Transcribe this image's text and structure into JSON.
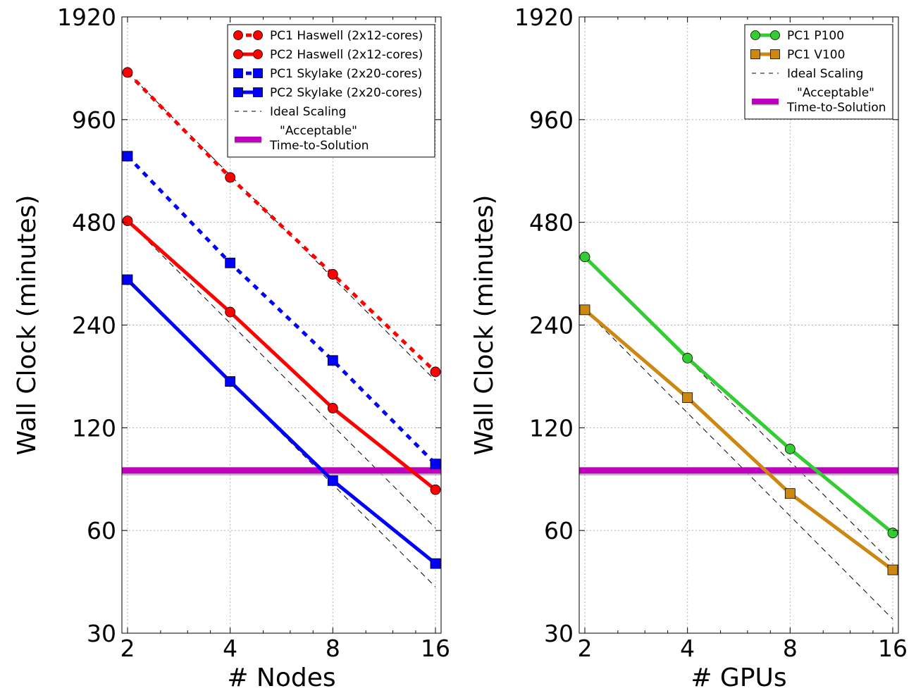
{
  "chart_data": [
    {
      "type": "line",
      "xscale": "log2",
      "yscale": "log2",
      "xlabel": "# Nodes",
      "ylabel": "Wall Clock (minutes)",
      "x_ticks": [
        "2",
        "4",
        "8",
        "16"
      ],
      "y_ticks": [
        "30",
        "60",
        "120",
        "240",
        "480",
        "960",
        "1920"
      ],
      "xlim": [
        2,
        16
      ],
      "ylim": [
        30,
        1920
      ],
      "grid": true,
      "legend_position": "top-right",
      "series": [
        {
          "name": "PC1 Haswell (2x12-cores)",
          "x": [
            2,
            4,
            8,
            16
          ],
          "y": [
            1320,
            650,
            338,
            175
          ],
          "color": "#ff0000",
          "marker": "circle",
          "linestyle": "dotted"
        },
        {
          "name": "PC2 Haswell (2x12-cores)",
          "x": [
            2,
            4,
            8,
            16
          ],
          "y": [
            485,
            262,
            137,
            79
          ],
          "color": "#ff0000",
          "marker": "circle",
          "linestyle": "solid"
        },
        {
          "name": "PC1 Skylake (2x20-cores)",
          "x": [
            2,
            4,
            8,
            16
          ],
          "y": [
            750,
            365,
            189,
            94
          ],
          "color": "#0000ff",
          "marker": "square",
          "linestyle": "dotted"
        },
        {
          "name": "PC2 Skylake (2x20-cores)",
          "x": [
            2,
            4,
            8,
            16
          ],
          "y": [
            326,
            164,
            84,
            48
          ],
          "color": "#0000ff",
          "marker": "square",
          "linestyle": "solid"
        }
      ],
      "reference_lines": [
        {
          "name": "Ideal Scaling",
          "style": "dashed",
          "color": "#000000",
          "lines": [
            {
              "x": [
                2,
                16
              ],
              "y": [
                1320,
                165
              ]
            },
            {
              "x": [
                2,
                16
              ],
              "y": [
                485,
                61
              ]
            },
            {
              "x": [
                2,
                16
              ],
              "y": [
                326,
                41
              ]
            }
          ]
        },
        {
          "name": "\"Acceptable\"\nTime-to-Solution",
          "y": 90,
          "color": "#bf00bf"
        }
      ]
    },
    {
      "type": "line",
      "xscale": "log2",
      "yscale": "log2",
      "xlabel": "# GPUs",
      "ylabel": "Wall Clock (minutes)",
      "x_ticks": [
        "2",
        "4",
        "8",
        "16"
      ],
      "y_ticks": [
        "30",
        "60",
        "120",
        "240",
        "480",
        "960",
        "1920"
      ],
      "xlim": [
        2,
        16
      ],
      "ylim": [
        30,
        1920
      ],
      "grid": true,
      "legend_position": "top-right",
      "series": [
        {
          "name": "PC1 P100",
          "x": [
            2,
            4,
            8,
            16
          ],
          "y": [
            380,
            192,
            104,
            59
          ],
          "color": "#33cc33",
          "marker": "circle",
          "linestyle": "solid"
        },
        {
          "name": "PC1 V100",
          "x": [
            2,
            4,
            8,
            16
          ],
          "y": [
            266,
            147,
            77,
            46
          ],
          "color": "#cc8811",
          "marker": "square",
          "linestyle": "solid"
        }
      ],
      "reference_lines": [
        {
          "name": "Ideal Scaling",
          "style": "dashed",
          "color": "#000000",
          "lines": [
            {
              "x": [
                2,
                16
              ],
              "y": [
                380,
                48
              ]
            },
            {
              "x": [
                2,
                16
              ],
              "y": [
                266,
                33
              ]
            }
          ]
        },
        {
          "name": "\"Acceptable\"\nTime-to-Solution",
          "y": 90,
          "color": "#bf00bf"
        }
      ]
    }
  ]
}
